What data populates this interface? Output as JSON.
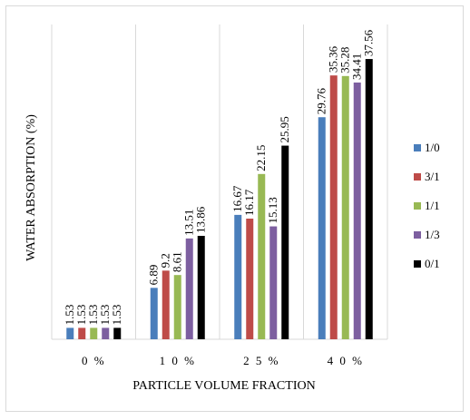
{
  "chart_data": {
    "type": "bar",
    "title": "",
    "xlabel": "PARTICLE VOLUME FRACTION",
    "ylabel": "WATER ABSORPTION (%)",
    "categories": [
      "0 %",
      "1 0 %",
      "2 5 %",
      "4 0 %"
    ],
    "ylim": [
      0,
      40
    ],
    "grid": "vertical separators only",
    "legend_position": "right",
    "series": [
      {
        "name": "1/0",
        "color": "#4a7ebb",
        "values": [
          1.53,
          6.89,
          16.67,
          29.76
        ],
        "labels": [
          "1.53",
          "6.89",
          "16.67",
          "29.76"
        ]
      },
      {
        "name": "3/1",
        "color": "#be4b48",
        "values": [
          1.53,
          9.2,
          16.17,
          35.36
        ],
        "labels": [
          "1.53",
          "9.2",
          "16.17",
          "35.36"
        ]
      },
      {
        "name": "1/1",
        "color": "#98b954",
        "values": [
          1.53,
          8.61,
          22.15,
          35.28
        ],
        "labels": [
          "1.53",
          "8.61",
          "22.15",
          "35.28"
        ]
      },
      {
        "name": "1/3",
        "color": "#7d5fa0",
        "values": [
          1.53,
          13.51,
          15.13,
          34.41
        ],
        "labels": [
          "1.53",
          "13.51",
          "15.13",
          "34.41"
        ]
      },
      {
        "name": "0/1",
        "color": "#000000",
        "values": [
          1.53,
          13.86,
          25.95,
          37.56
        ],
        "labels": [
          "1.53",
          "13.86",
          "25.95",
          "37.56"
        ]
      }
    ]
  }
}
